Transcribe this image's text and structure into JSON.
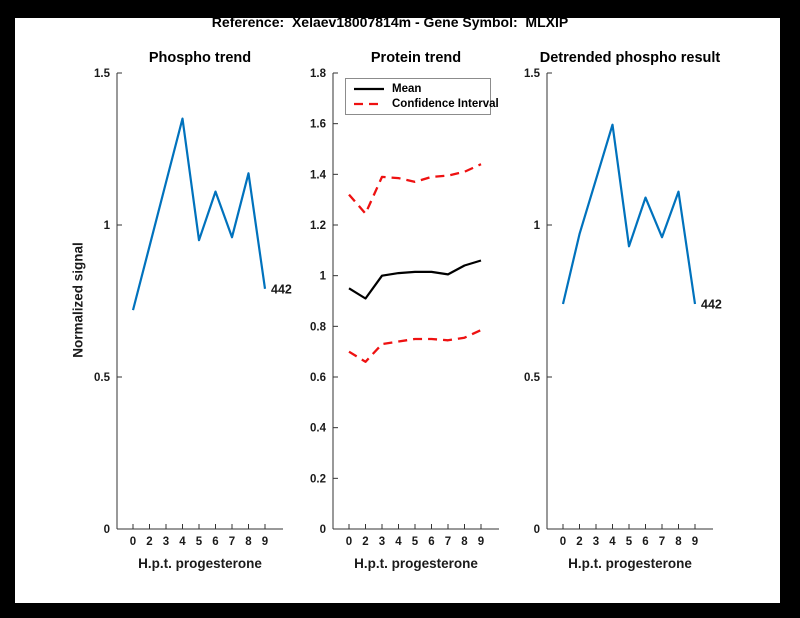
{
  "figure": {
    "title": "Reference:  Xelaev18007814m - Gene Symbol:  MLXIP",
    "background_color": "#ffffff",
    "frame_color": "#000000",
    "axis_color": "#333333",
    "text_color": "#1a1a1a"
  },
  "chart_data": [
    {
      "type": "line",
      "title": "Phospho trend",
      "xlabel": "H.p.t. progesterone",
      "ylabel": "Normalized signal",
      "categories": [
        "0",
        "2",
        "3",
        "4",
        "5",
        "6",
        "7",
        "8",
        "9"
      ],
      "ylim": [
        0,
        1.5
      ],
      "yticks": [
        0,
        0.5,
        1,
        1.5
      ],
      "ytick_labels": [
        "0",
        "0.5",
        "1",
        "1.5"
      ],
      "grid": false,
      "legend_position": "none",
      "series": [
        {
          "name": "phospho-signal",
          "color": "#0072BD",
          "style": "solid",
          "width": 2.2,
          "values": [
            0.72,
            0.93,
            1.14,
            1.35,
            0.95,
            1.11,
            0.96,
            1.17,
            0.79
          ],
          "end_label": "442"
        }
      ]
    },
    {
      "type": "line",
      "title": "Protein trend",
      "xlabel": "H.p.t. progesterone",
      "ylabel": "",
      "categories": [
        "0",
        "2",
        "3",
        "4",
        "5",
        "6",
        "7",
        "8",
        "9"
      ],
      "ylim": [
        0,
        1.8
      ],
      "yticks": [
        0,
        0.2,
        0.4,
        0.6,
        0.8,
        1,
        1.2,
        1.4,
        1.6,
        1.8
      ],
      "ytick_labels": [
        "0",
        "0.2",
        "0.4",
        "0.6",
        "0.8",
        "1",
        "1.2",
        "1.4",
        "1.6",
        "1.8"
      ],
      "grid": false,
      "legend_position": "northwest",
      "legend": {
        "entries": [
          {
            "label": "Mean",
            "color": "#000000",
            "style": "solid"
          },
          {
            "label": "Confidence Interval",
            "color": "#EE1111",
            "style": "dashed"
          }
        ]
      },
      "series": [
        {
          "name": "mean",
          "color": "#000000",
          "style": "solid",
          "width": 2.2,
          "values": [
            0.95,
            0.91,
            1.0,
            1.01,
            1.015,
            1.015,
            1.005,
            1.04,
            1.06
          ]
        },
        {
          "name": "confidence-interval-upper",
          "color": "#EE1111",
          "style": "dashed",
          "width": 2.3,
          "values": [
            1.32,
            1.245,
            1.39,
            1.385,
            1.37,
            1.39,
            1.395,
            1.41,
            1.44
          ]
        },
        {
          "name": "confidence-interval-lower",
          "color": "#EE1111",
          "style": "dashed",
          "width": 2.3,
          "values": [
            0.7,
            0.66,
            0.73,
            0.74,
            0.75,
            0.75,
            0.745,
            0.755,
            0.785
          ]
        }
      ]
    },
    {
      "type": "line",
      "title": "Detrended phospho result",
      "xlabel": "H.p.t. progesterone",
      "ylabel": "",
      "categories": [
        "0",
        "2",
        "3",
        "4",
        "5",
        "6",
        "7",
        "8",
        "9"
      ],
      "ylim": [
        0,
        1.5
      ],
      "yticks": [
        0,
        0.5,
        1,
        1.5
      ],
      "ytick_labels": [
        "0",
        "0.5",
        "1",
        "1.5"
      ],
      "grid": false,
      "legend_position": "none",
      "series": [
        {
          "name": "detrended-phospho-signal",
          "color": "#0072BD",
          "style": "solid",
          "width": 2.2,
          "values": [
            0.74,
            0.97,
            1.15,
            1.33,
            0.93,
            1.09,
            0.96,
            1.11,
            0.74
          ],
          "end_label": "442"
        }
      ]
    }
  ]
}
